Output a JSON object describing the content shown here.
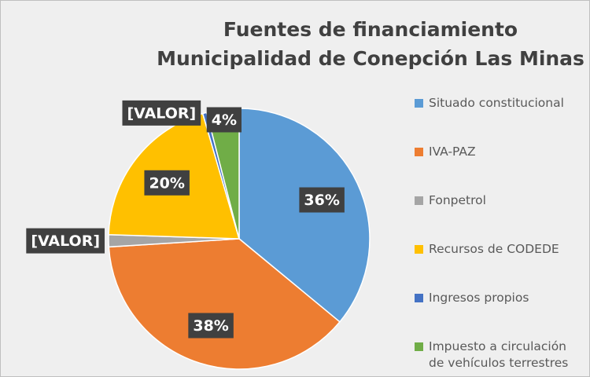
{
  "chart_data": {
    "type": "pie",
    "title": "Fuentes de financiamiento Municipalidad de Conepción Las Minas",
    "categories": [
      "Situado constitucional",
      "IVA-PAZ",
      "Fonpetrol",
      "Recursos de CODEDE",
      "Ingresos propios",
      "Impuesto a circulación de vehículos terrestres"
    ],
    "values": [
      36,
      38,
      1.5,
      20,
      0.5,
      4
    ],
    "value_labels": [
      "36%",
      "38%",
      "[VALOR]",
      "20%",
      "[VALOR]",
      "4%"
    ],
    "colors": [
      "#5b9bd5",
      "#ed7d31",
      "#a5a5a5",
      "#ffc000",
      "#4472c4",
      "#70ad47"
    ],
    "legend": "right"
  }
}
